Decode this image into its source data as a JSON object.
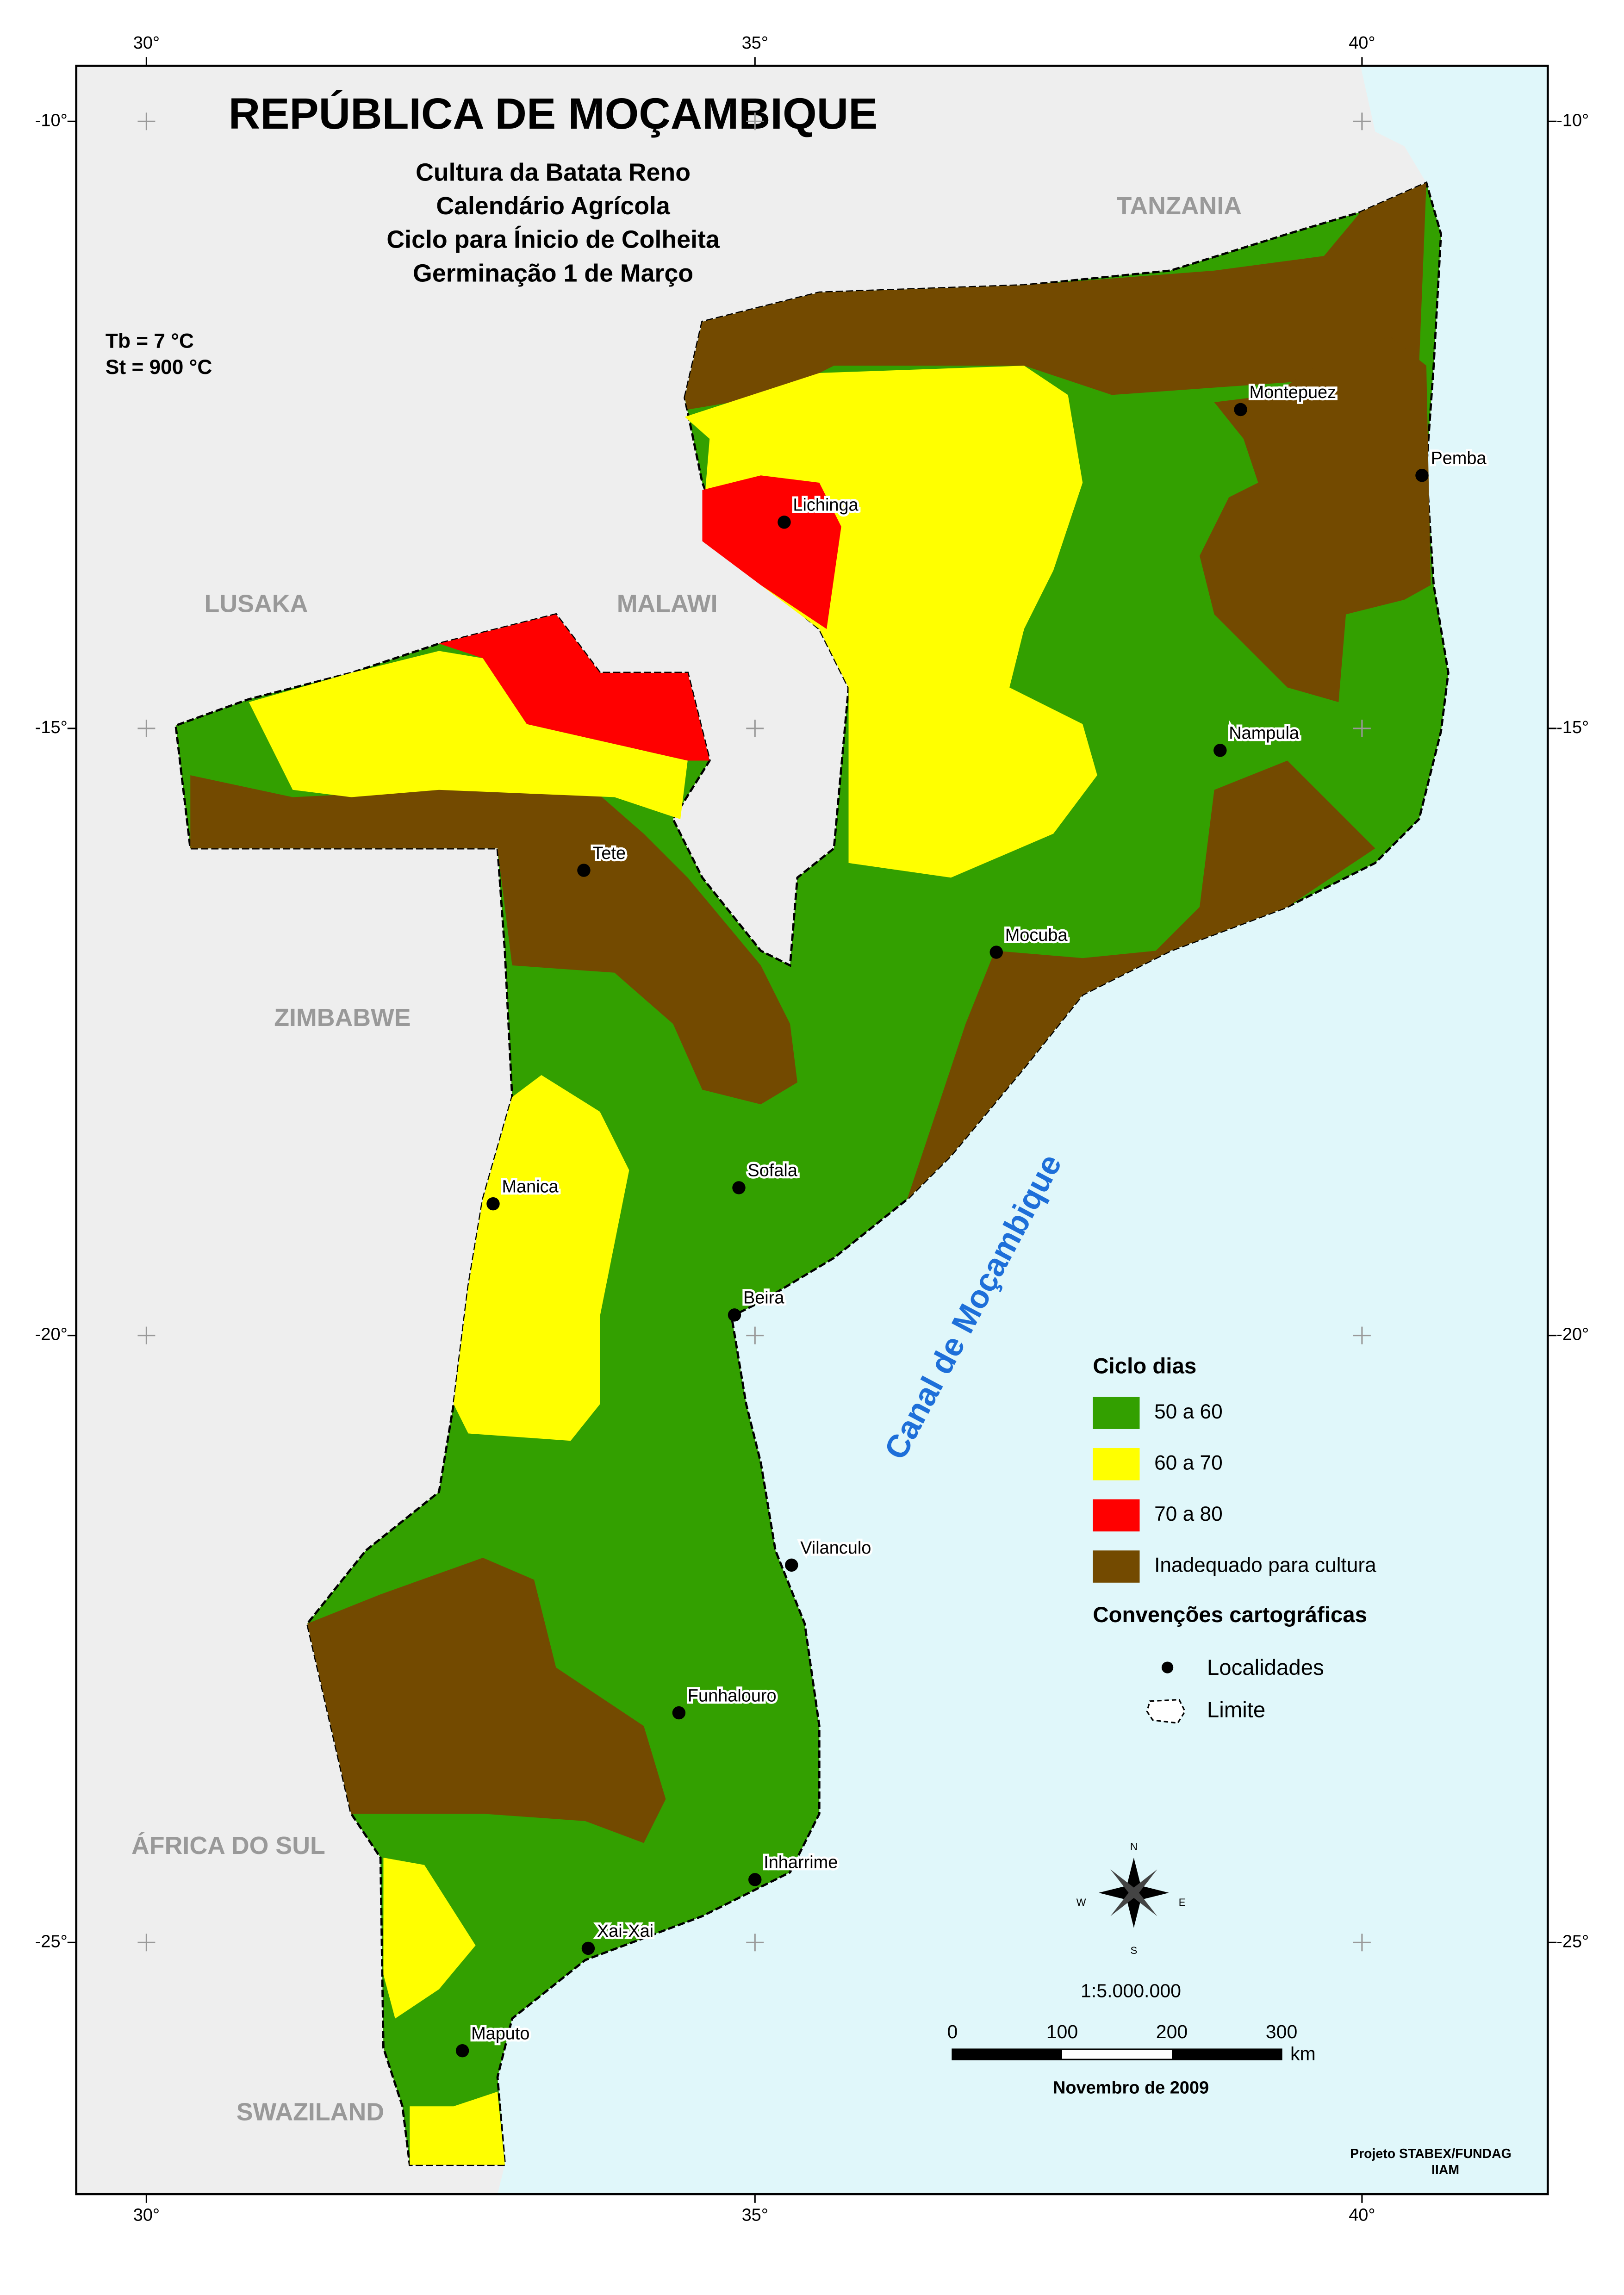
{
  "header": {
    "title": "REPÚBLICA DE MOÇAMBIQUE",
    "subtitle": [
      "Cultura da Batata Reno",
      "Calendário Agrícola",
      "Ciclo para Ínicio de Colheita",
      "Germinação 1 de Março"
    ],
    "params": [
      "Tb = 7 °C",
      "St =  900 °C"
    ]
  },
  "axes": {
    "lon": [
      "30°",
      "35°",
      "40°"
    ],
    "lat": [
      "-10°",
      "-15°",
      "-20°",
      "-25°"
    ]
  },
  "countries": [
    "TANZANIA",
    "MALAWI",
    "LUSAKA",
    "ZIMBABWE",
    "ÁFRICA DO SUL",
    "SWAZILAND"
  ],
  "sea": "Canal de Moçambique",
  "cities": [
    "Montepuez",
    "Pemba",
    "Lichinga",
    "Nampula",
    "Tete",
    "Mocuba",
    "Sofala",
    "Manica",
    "Beira",
    "Vilanculo",
    "Funhalouro",
    "Inharrime",
    "Xai-Xai",
    "Maputo"
  ],
  "legend": {
    "title": "Ciclo dias",
    "items": [
      "50 a 60",
      "60 a 70",
      "70 a 80",
      "Inadequado para cultura"
    ],
    "conventions_title": "Convenções cartográficas",
    "conventions": [
      "Localidades",
      "Limite"
    ]
  },
  "compass": [
    "N",
    "S",
    "E",
    "W"
  ],
  "scale": {
    "ratio": "1:5.000.000",
    "ticks": [
      "0",
      "100",
      "200",
      "300"
    ],
    "unit": "km"
  },
  "date": "Novembro de 2009",
  "credits": [
    "Projeto STABEX/FUNDAG",
    "IIAM"
  ]
}
